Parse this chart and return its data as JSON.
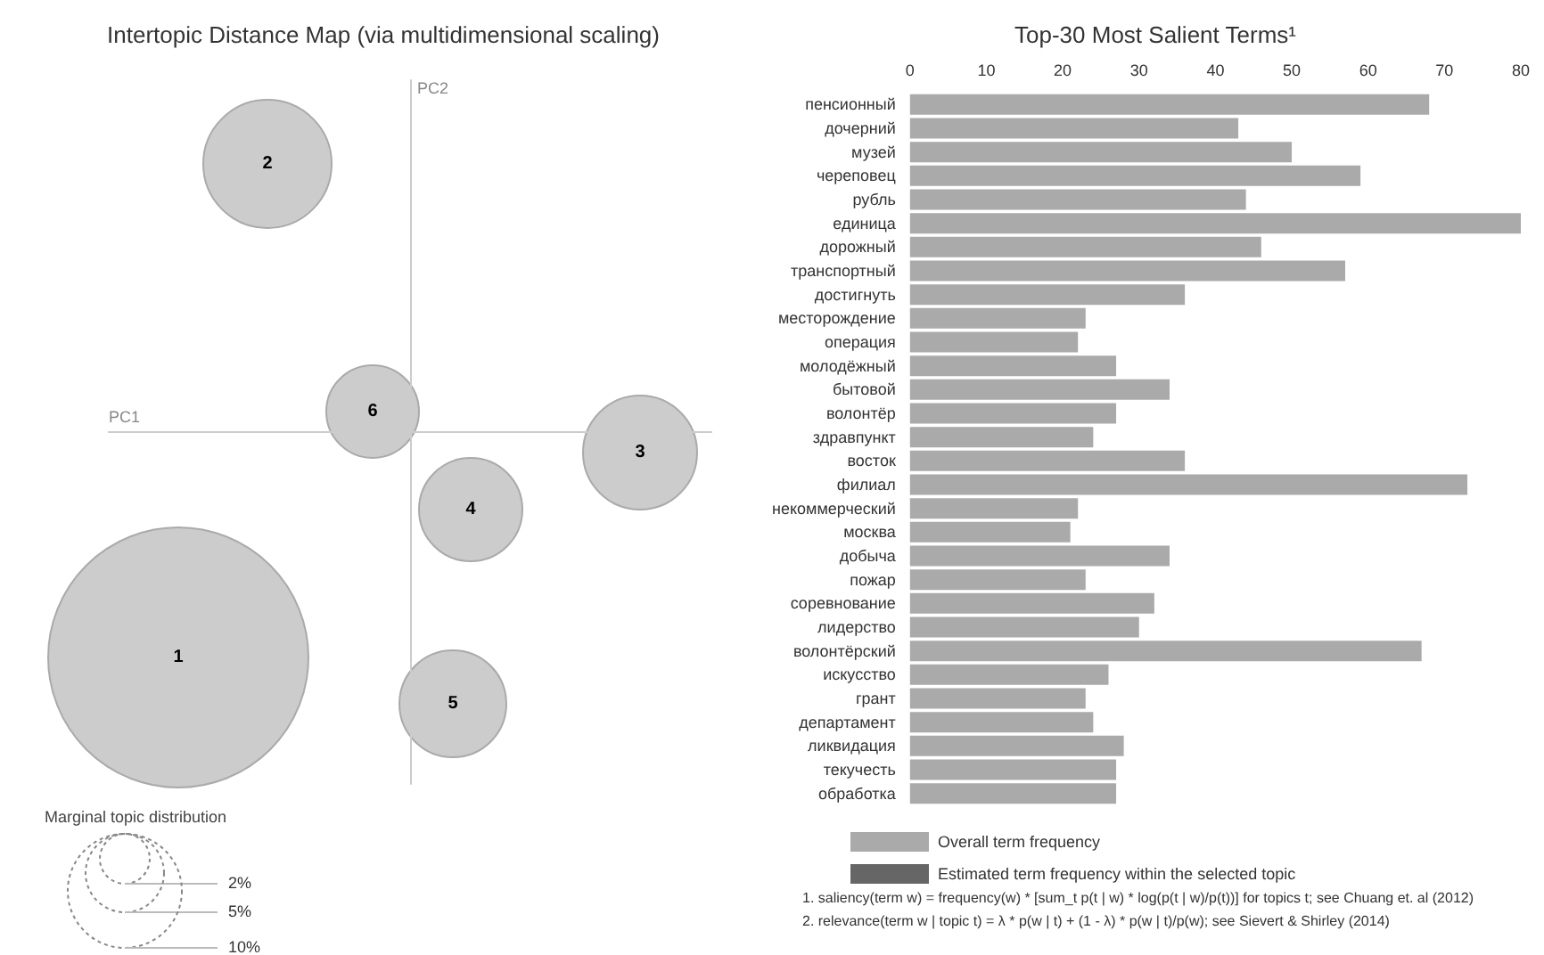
{
  "chart_data": [
    {
      "type": "other",
      "title": "Intertopic Distance Map (via multidimensional scaling)",
      "xlabel": "PC1",
      "ylabel": "PC2",
      "annotations": [
        "1",
        "2",
        "3",
        "4",
        "5",
        "6"
      ],
      "legend_title": "Marginal topic distribution",
      "size_legend": [
        "2%",
        "5%",
        "10%"
      ]
    },
    {
      "type": "bar",
      "orientation": "horizontal",
      "title": "Top-30 Most Salient Terms¹",
      "categories": [
        "пенсионный",
        "дочерний",
        "музей",
        "череповец",
        "рубль",
        "единица",
        "дорожный",
        "транспортный",
        "достигнуть",
        "месторождение",
        "операция",
        "молодёжный",
        "бытовой",
        "волонтёр",
        "здравпункт",
        "восток",
        "филиал",
        "некоммерческий",
        "москва",
        "добыча",
        "пожар",
        "соревнование",
        "лидерство",
        "волонтёрский",
        "искусство",
        "грант",
        "департамент",
        "ликвидация",
        "текучесть",
        "обработка"
      ],
      "series": [
        {
          "name": "Overall term frequency",
          "color": "#aaaaaa",
          "values": [
            68,
            43,
            50,
            59,
            44,
            80,
            46,
            57,
            36,
            23,
            22,
            27,
            34,
            27,
            24,
            36,
            73,
            22,
            21,
            34,
            23,
            32,
            30,
            67,
            26,
            23,
            24,
            28,
            27,
            27
          ]
        },
        {
          "name": "Estimated term frequency within the selected topic",
          "color": "#666666",
          "values": [
            null,
            null,
            null,
            null,
            null,
            null,
            null,
            null,
            null,
            null,
            null,
            null,
            null,
            null,
            null,
            null,
            null,
            null,
            null,
            null,
            null,
            null,
            null,
            null,
            null,
            null,
            null,
            null,
            null,
            null
          ]
        }
      ],
      "xlim": [
        0,
        80
      ],
      "xticks": [
        0,
        10,
        20,
        30,
        40,
        50,
        60,
        70,
        80
      ],
      "legend": "bottom left",
      "annotations": [
        "1. saliency(term w) = frequency(w) * [sum_t p(t | w) * log(p(t | w)/p(t))] for topics t; see Chuang et. al (2012)",
        "2. relevance(term w | topic t) = λ * p(w | t) + (1 - λ) * p(w | t)/p(w); see Sievert & Shirley (2014)"
      ]
    }
  ]
}
